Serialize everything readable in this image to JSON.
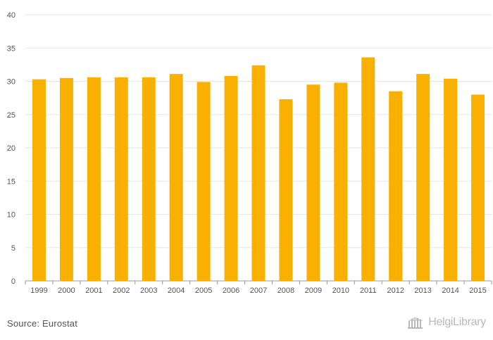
{
  "chart_data": {
    "type": "bar",
    "categories": [
      "1999",
      "2000",
      "2001",
      "2002",
      "2003",
      "2004",
      "2005",
      "2006",
      "2007",
      "2008",
      "2009",
      "2010",
      "2011",
      "2012",
      "2013",
      "2014",
      "2015"
    ],
    "values": [
      30.3,
      30.5,
      30.6,
      30.6,
      30.6,
      31.1,
      29.9,
      30.8,
      32.4,
      27.3,
      29.5,
      29.8,
      33.6,
      28.5,
      31.1,
      30.4,
      28.0
    ],
    "yticks": [
      0,
      5,
      10,
      15,
      20,
      25,
      30,
      35,
      40
    ],
    "ylim": [
      0,
      40
    ],
    "grid": true,
    "bar_color": "#F9B000",
    "grid_color": "#e6e6e6",
    "axis_color": "#999999"
  },
  "footer": {
    "source": "Source: Eurostat",
    "brand": "HelgiLibrary",
    "brand_icon": "library-icon"
  }
}
